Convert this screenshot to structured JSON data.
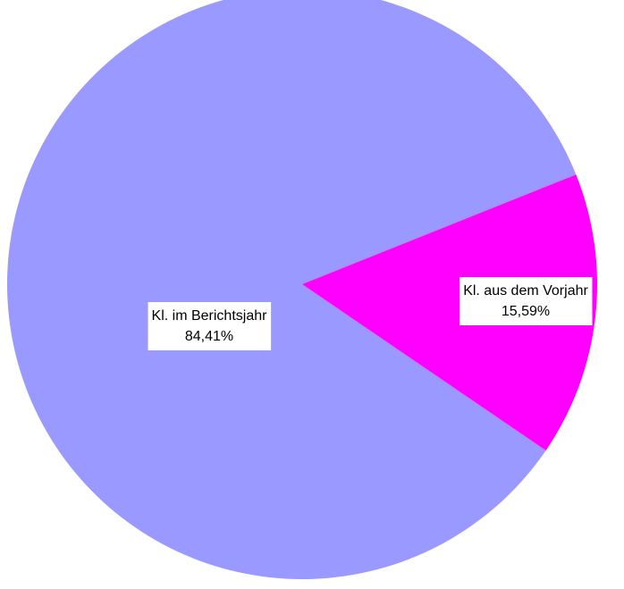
{
  "chart_data": {
    "type": "pie",
    "categories": [
      "Kl. im Berichtsjahr",
      "Kl. aus dem Vorjahr"
    ],
    "values": [
      84.41,
      15.59
    ],
    "value_labels": [
      "84,41%",
      "15,59%"
    ],
    "colors": [
      "#9999ff",
      "#ff00ff"
    ]
  }
}
